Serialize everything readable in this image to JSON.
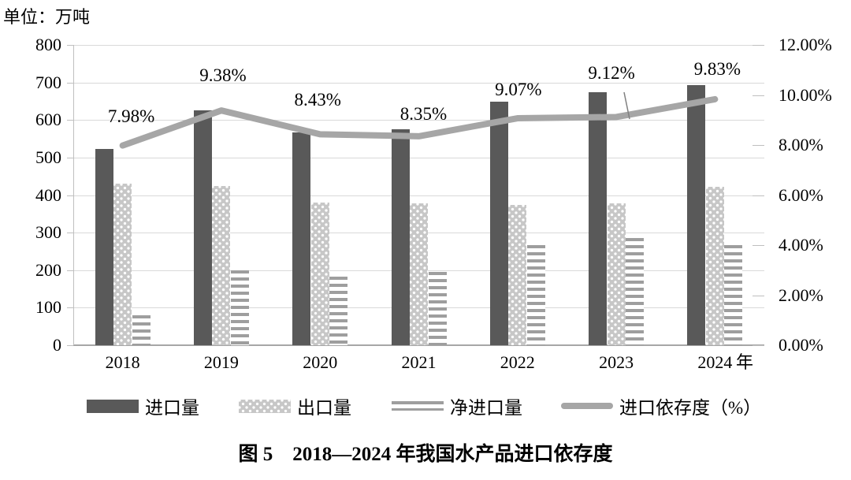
{
  "unit_label": "单位：万吨",
  "x_axis_suffix": "年",
  "caption": "图 5　2018—2024 年我国水产品进口依存度",
  "legend": {
    "items": [
      {
        "label": "进口量",
        "swatch": "solid-dark-bar"
      },
      {
        "label": "出口量",
        "swatch": "dotted-bar"
      },
      {
        "label": "净进口量",
        "swatch": "striped-bar"
      },
      {
        "label": "进口依存度（%）",
        "swatch": "thick-gray-line"
      }
    ]
  },
  "chart_data": {
    "type": "bar-line-combo",
    "categories": [
      "2018",
      "2019",
      "2020",
      "2021",
      "2022",
      "2023",
      "2024"
    ],
    "bar_series": [
      {
        "name": "进口量",
        "pattern": "solid-dark",
        "values": [
          523,
          626,
          566,
          576,
          648,
          673,
          693
        ]
      },
      {
        "name": "出口量",
        "pattern": "dotted",
        "values": [
          431,
          425,
          381,
          378,
          374,
          377,
          423
        ]
      },
      {
        "name": "净进口量",
        "pattern": "horizontal-stripes",
        "values": [
          79,
          200,
          183,
          196,
          267,
          285,
          267
        ]
      }
    ],
    "line_series": {
      "name": "进口依存度（%）",
      "values": [
        7.98,
        9.38,
        8.43,
        8.35,
        9.07,
        9.12,
        9.83
      ],
      "point_labels": [
        "7.98%",
        "9.38%",
        "8.43%",
        "8.35%",
        "9.07%",
        "9.12%",
        "9.83%"
      ]
    },
    "left_axis": {
      "title": "万吨",
      "min": 0,
      "max": 800,
      "step": 100,
      "tick_labels": [
        "800",
        "700",
        "600",
        "500",
        "400",
        "300",
        "200",
        "100",
        "0"
      ]
    },
    "right_axis": {
      "min": 0,
      "max": 12,
      "step": 2,
      "tick_labels": [
        "12.00%",
        "10.00%",
        "8.00%",
        "6.00%",
        "4.00%",
        "2.00%",
        "0.00%"
      ]
    },
    "grid": "horizontal-only",
    "legend_position": "bottom",
    "colors": {
      "bar_dark": "#595959",
      "bar_dotted_bg": "#c7c7c7",
      "bar_stripe": "#9e9e9e",
      "line": "#a6a6a6",
      "gridline": "#d9d9d9",
      "axis": "#bfbfbf",
      "text": "#000000"
    },
    "label_offsets": {
      "dx": [
        11,
        2,
        -3,
        6,
        1,
        -6,
        3
      ],
      "dy": [
        -37,
        -44,
        -43,
        -28,
        -36,
        -55,
        -38
      ]
    }
  }
}
